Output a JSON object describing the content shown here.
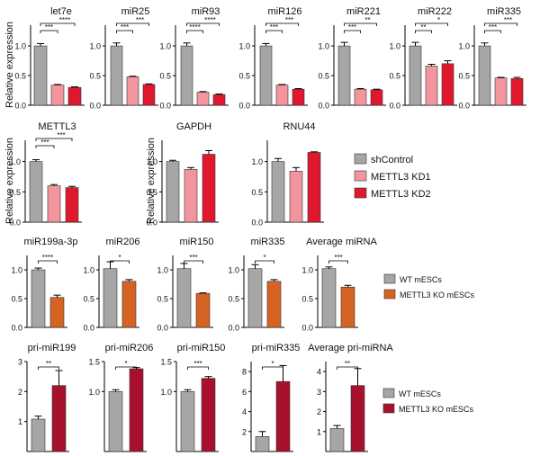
{
  "colors": {
    "shControl": "#a6a6a6",
    "METTL3 KD1": "#f2959e",
    "METTL3 KD2": "#e0182d",
    "WT mESCs": "#a6a6a6",
    "METTL3 KO mESCs": "#d46324",
    "METTL3 KO mESCs (pri)": "#a8112e"
  },
  "legends": [
    {
      "entries": [
        "shControl",
        "METTL3 KD1",
        "METTL3 KD2"
      ],
      "colors": [
        "#a6a6a6",
        "#f2959e",
        "#e0182d"
      ]
    },
    {
      "entries": [
        "WT mESCs",
        "METTL3 KO mESCs"
      ],
      "colors": [
        "#a6a6a6",
        "#d46324"
      ]
    },
    {
      "entries": [
        "WT mESCs",
        "METTL3 KO mESCs"
      ],
      "colors": [
        "#a6a6a6",
        "#a8112e"
      ]
    }
  ],
  "ylabels": [
    "Relative expression",
    "Relative expression",
    "Relative expression"
  ],
  "chart_data": [
    {
      "type": "bar",
      "title": "let7e",
      "categories": [
        "shControl",
        "METTL3 KD1",
        "METTL3 KD2"
      ],
      "values": [
        1.0,
        0.34,
        0.3
      ],
      "errors": [
        0.04,
        0.01,
        0.01
      ],
      "ylim": [
        0,
        1.35
      ],
      "significance": [
        "***",
        "****"
      ]
    },
    {
      "type": "bar",
      "title": "miR25",
      "categories": [
        "shControl",
        "METTL3 KD1",
        "METTL3 KD2"
      ],
      "values": [
        1.0,
        0.48,
        0.35
      ],
      "errors": [
        0.05,
        0.01,
        0.01
      ],
      "ylim": [
        0,
        1.35
      ],
      "significance": [
        "***",
        "***"
      ]
    },
    {
      "type": "bar",
      "title": "miR93",
      "categories": [
        "shControl",
        "METTL3 KD1",
        "METTL3 KD2"
      ],
      "values": [
        1.0,
        0.22,
        0.18
      ],
      "errors": [
        0.05,
        0.01,
        0.01
      ],
      "ylim": [
        0,
        1.35
      ],
      "significance": [
        "****",
        "****"
      ]
    },
    {
      "type": "bar",
      "title": "miR126",
      "categories": [
        "shControl",
        "METTL3 KD1",
        "METTL3 KD2"
      ],
      "values": [
        1.0,
        0.34,
        0.27
      ],
      "errors": [
        0.04,
        0.01,
        0.01
      ],
      "ylim": [
        0,
        1.35
      ],
      "significance": [
        "***",
        "***"
      ]
    },
    {
      "type": "bar",
      "title": "miR221",
      "categories": [
        "shControl",
        "METTL3 KD1",
        "METTL3 KD2"
      ],
      "values": [
        1.0,
        0.27,
        0.26
      ],
      "errors": [
        0.06,
        0.01,
        0.01
      ],
      "ylim": [
        0,
        1.35
      ],
      "significance": [
        "***",
        "**"
      ]
    },
    {
      "type": "bar",
      "title": "miR222",
      "categories": [
        "shControl",
        "METTL3 KD1",
        "METTL3 KD2"
      ],
      "values": [
        1.0,
        0.66,
        0.7
      ],
      "errors": [
        0.06,
        0.03,
        0.05
      ],
      "ylim": [
        0,
        1.35
      ],
      "significance": [
        "**",
        "*"
      ]
    },
    {
      "type": "bar",
      "title": "miR335",
      "categories": [
        "shControl",
        "METTL3 KD1",
        "METTL3 KD2"
      ],
      "values": [
        1.0,
        0.46,
        0.45
      ],
      "errors": [
        0.05,
        0.01,
        0.02
      ],
      "ylim": [
        0,
        1.35
      ],
      "significance": [
        "***",
        "***"
      ]
    },
    {
      "type": "bar",
      "title": "METTL3",
      "categories": [
        "shControl",
        "METTL3 KD1",
        "METTL3 KD2"
      ],
      "values": [
        1.0,
        0.6,
        0.57
      ],
      "errors": [
        0.03,
        0.02,
        0.02
      ],
      "ylim": [
        0,
        1.35
      ],
      "significance": [
        "***",
        "***"
      ]
    },
    {
      "type": "bar",
      "title": "GAPDH",
      "categories": [
        "shControl",
        "METTL3 KD1",
        "METTL3 KD2"
      ],
      "values": [
        1.0,
        0.87,
        1.12
      ],
      "errors": [
        0.02,
        0.03,
        0.06
      ],
      "ylim": [
        0,
        1.35
      ],
      "yticks": [
        0.0,
        0.5,
        1.0
      ],
      "significance": []
    },
    {
      "type": "bar",
      "title": "RNU44",
      "categories": [
        "shControl",
        "METTL3 KD1",
        "METTL3 KD2"
      ],
      "values": [
        1.0,
        0.84,
        1.15
      ],
      "errors": [
        0.05,
        0.06,
        0.01
      ],
      "ylim": [
        0,
        1.35
      ],
      "yticks": [
        0.0,
        0.5,
        1.0
      ],
      "significance": []
    },
    {
      "type": "bar",
      "title": "miR199a-3p",
      "categories": [
        "WT mESCs",
        "METTL3 KO mESCs"
      ],
      "values": [
        1.0,
        0.52
      ],
      "errors": [
        0.03,
        0.04
      ],
      "ylim": [
        0,
        1.25
      ],
      "yticks": [
        0.0,
        0.5,
        1.0
      ],
      "significance": [
        "****"
      ]
    },
    {
      "type": "bar",
      "title": "miR206",
      "categories": [
        "WT mESCs",
        "METTL3 KO mESCs"
      ],
      "values": [
        1.02,
        0.8
      ],
      "errors": [
        0.12,
        0.03
      ],
      "ylim": [
        0,
        1.25
      ],
      "yticks": [
        0.0,
        0.5,
        1.0
      ],
      "significance": [
        "*"
      ]
    },
    {
      "type": "bar",
      "title": "miR150",
      "categories": [
        "WT mESCs",
        "METTL3 KO mESCs"
      ],
      "values": [
        1.02,
        0.59
      ],
      "errors": [
        0.09,
        0.01
      ],
      "ylim": [
        0,
        1.25
      ],
      "yticks": [
        0.0,
        0.5,
        1.0
      ],
      "significance": [
        "***"
      ]
    },
    {
      "type": "bar",
      "title": "miR335",
      "categories": [
        "WT mESCs",
        "METTL3 KO mESCs"
      ],
      "values": [
        1.02,
        0.8
      ],
      "errors": [
        0.07,
        0.03
      ],
      "ylim": [
        0,
        1.25
      ],
      "yticks": [
        0.0,
        0.5,
        1.0
      ],
      "significance": [
        "*"
      ]
    },
    {
      "type": "bar",
      "title": "Average miRNA",
      "categories": [
        "WT mESCs",
        "METTL3 KO mESCs"
      ],
      "values": [
        1.02,
        0.7
      ],
      "errors": [
        0.03,
        0.03
      ],
      "ylim": [
        0,
        1.25
      ],
      "yticks": [
        0.0,
        0.5,
        1.0
      ],
      "significance": [
        "***"
      ]
    },
    {
      "type": "bar",
      "title": "pri-miR199",
      "categories": [
        "WT mESCs",
        "METTL3 KO mESCs"
      ],
      "values": [
        1.08,
        2.2
      ],
      "errors": [
        0.1,
        0.5
      ],
      "ylim": [
        0,
        3
      ],
      "yticks": [
        1,
        2,
        3
      ],
      "significance": [
        "**"
      ]
    },
    {
      "type": "bar",
      "title": "pri-miR206",
      "categories": [
        "WT mESCs",
        "METTL3 KO mESCs"
      ],
      "values": [
        1.0,
        1.38
      ],
      "errors": [
        0.03,
        0.02
      ],
      "ylim": [
        0,
        1.5
      ],
      "yticks": [
        1.0,
        1.5
      ],
      "significance": [
        "*"
      ]
    },
    {
      "type": "bar",
      "title": "pri-miR150",
      "categories": [
        "WT mESCs",
        "METTL3 KO mESCs"
      ],
      "values": [
        1.0,
        1.22
      ],
      "errors": [
        0.03,
        0.03
      ],
      "ylim": [
        0,
        1.5
      ],
      "yticks": [
        1.0,
        1.5
      ],
      "significance": [
        "***"
      ]
    },
    {
      "type": "bar",
      "title": "pri-miR335",
      "categories": [
        "WT mESCs",
        "METTL3 KO mESCs"
      ],
      "values": [
        1.5,
        7.0
      ],
      "errors": [
        0.5,
        1.6
      ],
      "ylim": [
        0,
        9
      ],
      "yticks": [
        2,
        4,
        6,
        8
      ],
      "significance": [
        "*"
      ]
    },
    {
      "type": "bar",
      "title": "Average pri-miRNA",
      "categories": [
        "WT mESCs",
        "METTL3 KO mESCs"
      ],
      "values": [
        1.15,
        3.3
      ],
      "errors": [
        0.15,
        0.85
      ],
      "ylim": [
        0,
        4.5
      ],
      "yticks": [
        1,
        2,
        3,
        4
      ],
      "significance": [
        "**"
      ]
    }
  ]
}
